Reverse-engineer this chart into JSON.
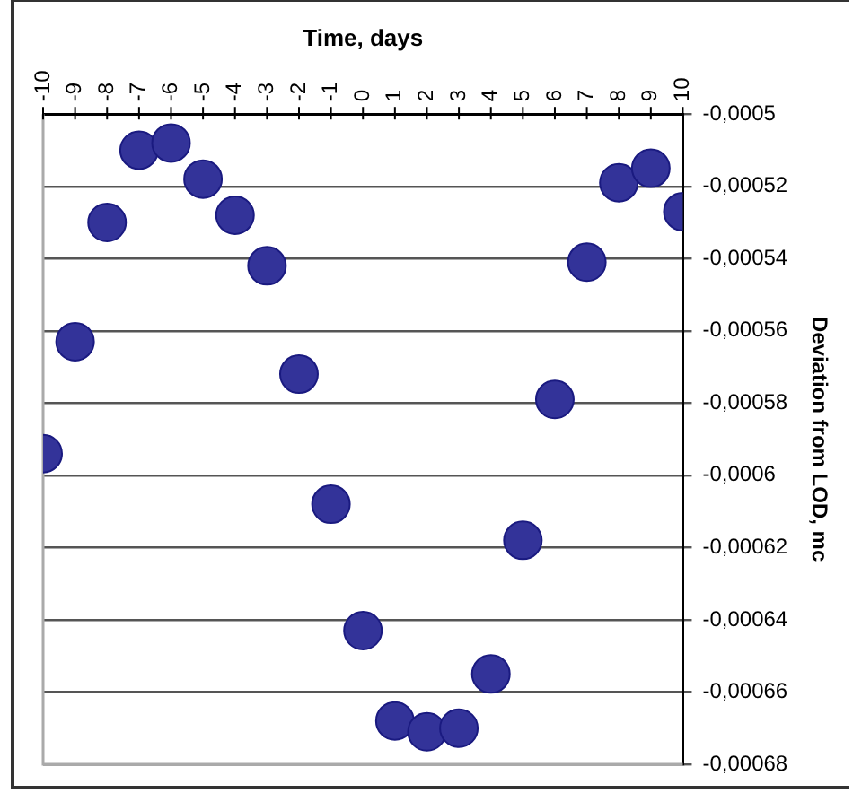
{
  "chart_data": {
    "type": "scatter",
    "xlabel": "Time, days",
    "ylabel": "Deviation from LOD, mc",
    "x": [
      -10,
      -9,
      -8,
      -7,
      -6,
      -5,
      -4,
      -3,
      -2,
      -1,
      0,
      1,
      2,
      3,
      4,
      5,
      6,
      7,
      8,
      9,
      10
    ],
    "series": [
      {
        "color": "#333399",
        "values": [
          -0.000594,
          -0.000563,
          -0.00053,
          -0.00051,
          -0.000508,
          -0.000518,
          -0.000528,
          -0.000542,
          -0.000572,
          -0.000608,
          -0.000643,
          -0.000668,
          -0.000671,
          -0.00067,
          -0.000655,
          -0.000618,
          -0.000579,
          -0.000541,
          -0.000519,
          -0.000515,
          -0.000527
        ]
      }
    ],
    "xlim": [
      -10,
      10
    ],
    "xticks": [
      -10,
      -9,
      -8,
      -7,
      -6,
      -5,
      -4,
      -3,
      -2,
      -1,
      0,
      1,
      2,
      3,
      4,
      5,
      6,
      7,
      8,
      9,
      10
    ],
    "ylim": [
      -0.00068,
      -0.0005
    ],
    "yticks": [
      {
        "value": -0.0005,
        "label": "-0,0005"
      },
      {
        "value": -0.00052,
        "label": "-0,00052"
      },
      {
        "value": -0.00054,
        "label": "-0,00054"
      },
      {
        "value": -0.00056,
        "label": "-0,00056"
      },
      {
        "value": -0.00058,
        "label": "-0,00058"
      },
      {
        "value": -0.0006,
        "label": "-0,0006"
      },
      {
        "value": -0.00062,
        "label": "-0,00062"
      },
      {
        "value": -0.00064,
        "label": "-0,00064"
      },
      {
        "value": -0.00066,
        "label": "-0,00066"
      },
      {
        "value": -0.00068,
        "label": "-0,00068"
      }
    ],
    "grid": "y",
    "legend": false,
    "marker": "circle"
  }
}
